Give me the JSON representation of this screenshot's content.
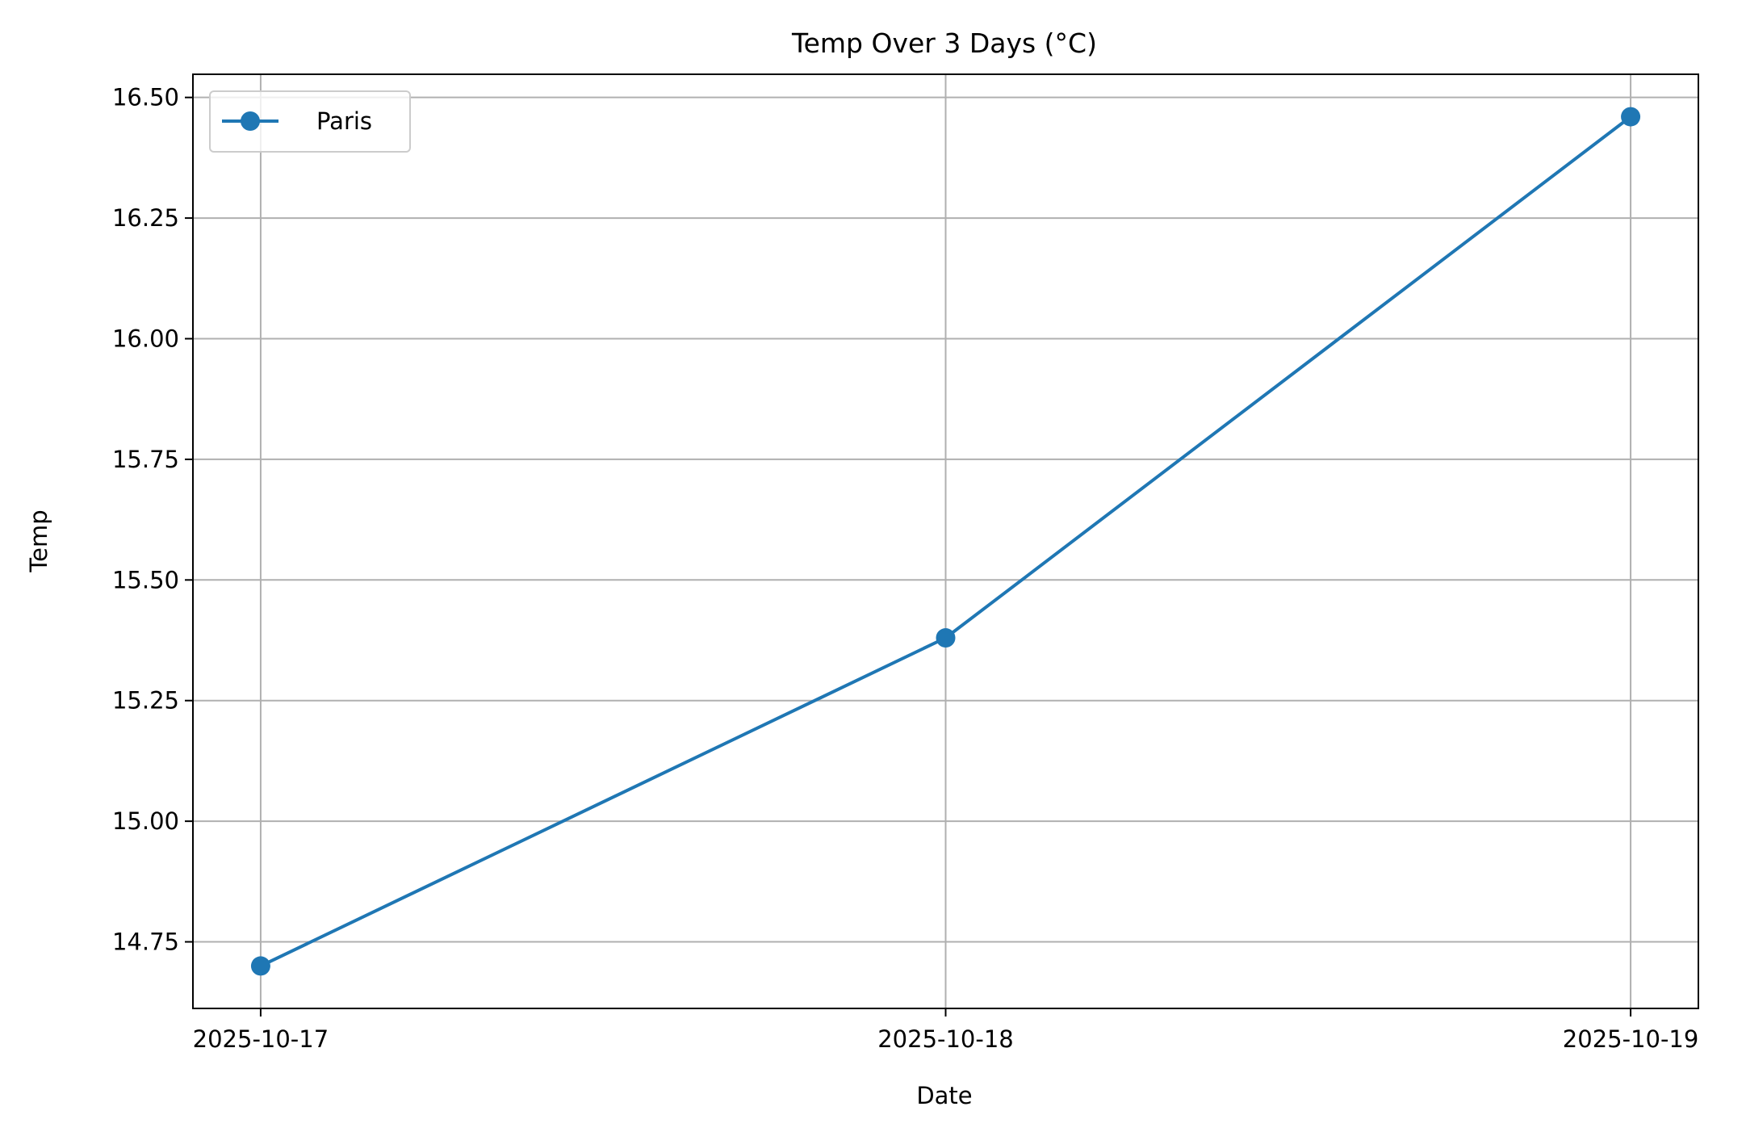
{
  "chart_data": {
    "type": "line",
    "title": "Temp Over 3 Days (°C)",
    "xlabel": "Date",
    "ylabel": "Temp",
    "x": [
      "2025-10-17",
      "2025-10-18",
      "2025-10-19"
    ],
    "series": [
      {
        "name": "Paris",
        "values": [
          14.7,
          15.38,
          16.46
        ],
        "color": "#1f77b4",
        "marker": "circle"
      }
    ],
    "xticks": [
      "2025-10-17",
      "2025-10-18",
      "2025-10-19"
    ],
    "yticks": [
      14.75,
      15.0,
      15.25,
      15.5,
      15.75,
      16.0,
      16.25,
      16.5
    ],
    "ytick_labels": [
      "14.75",
      "15.00",
      "15.25",
      "15.50",
      "15.75",
      "16.00",
      "16.25",
      "16.50"
    ],
    "ylim": [
      14.612,
      16.548
    ],
    "grid": true,
    "legend_position": "upper-left"
  }
}
